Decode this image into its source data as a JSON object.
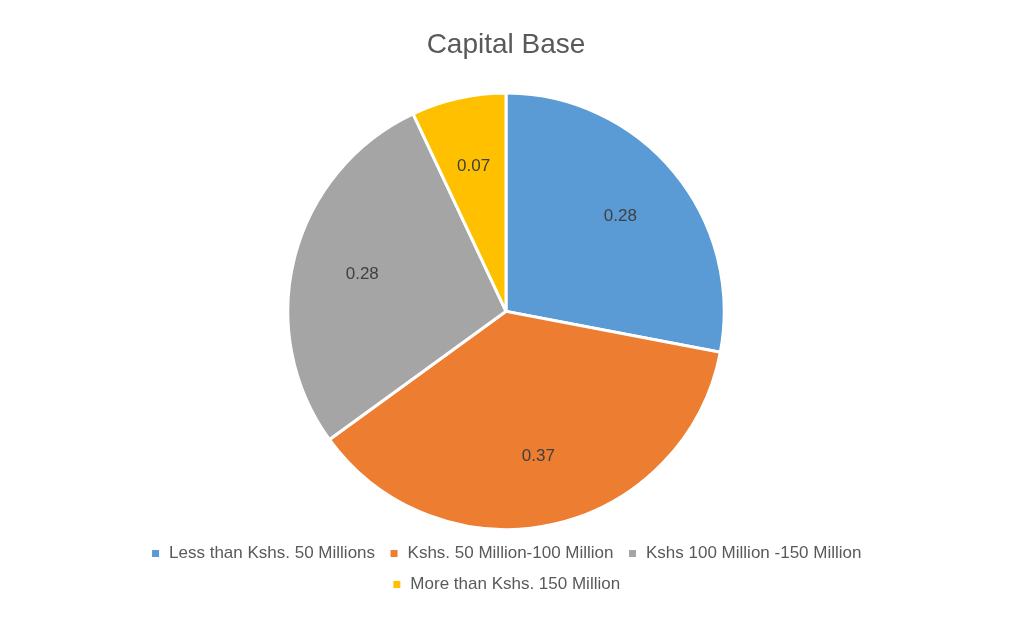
{
  "chart_data": {
    "type": "pie",
    "title": "Capital Base",
    "categories": [
      "Less than Kshs. 50 Millions",
      "Kshs. 50 Million-100 Million",
      "Kshs 100 Million -150 Million",
      "More than Kshs. 150 Million"
    ],
    "values": [
      0.28,
      0.37,
      0.28,
      0.07
    ],
    "colors": [
      "#5b9bd5",
      "#ed7d31",
      "#a5a5a5",
      "#ffc000"
    ],
    "data_labels": true,
    "legend": "bottom"
  }
}
